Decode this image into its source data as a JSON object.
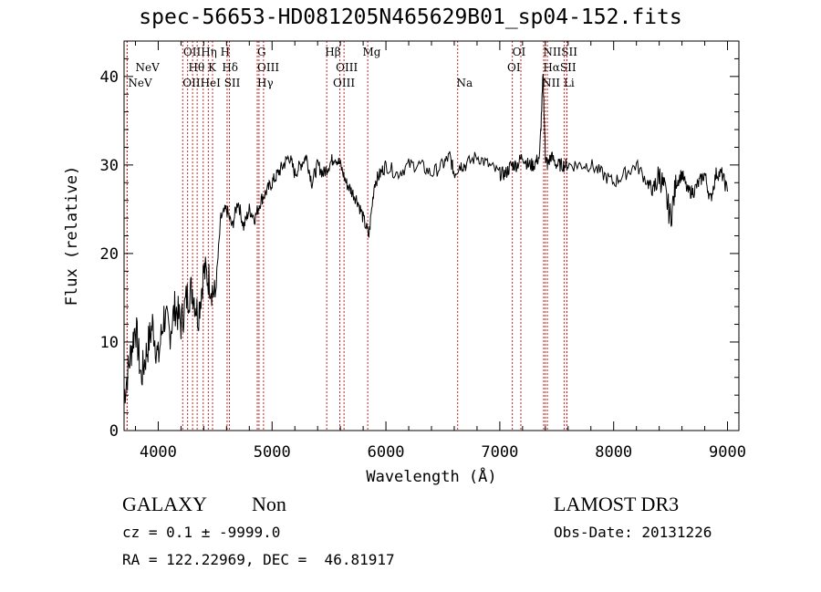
{
  "title": "spec-56653-HD081205N465629B01_sp04-152.fits",
  "info": {
    "class": "GALAXY",
    "subclass": "Non",
    "survey": "LAMOST DR3",
    "cz": "cz = 0.1 ± -9999.0",
    "obs_date": "Obs-Date: 20131226",
    "radec": "RA = 122.22969, DEC =  46.81917"
  },
  "chart_data": {
    "type": "line",
    "title": "spec-56653-HD081205N465629B01_sp04-152.fits",
    "xlabel": "Wavelength (Å)",
    "ylabel": "Flux (relative)",
    "xlim": [
      3700,
      9100
    ],
    "ylim": [
      0,
      44
    ],
    "xticks": [
      4000,
      5000,
      6000,
      7000,
      8000,
      9000
    ],
    "yticks": [
      0,
      10,
      20,
      30,
      40
    ],
    "grid": false,
    "color": "#000000",
    "line_marker_color": "#cc2222",
    "series": [
      {
        "x": [
          3700,
          3750,
          3800,
          3850,
          3900,
          3950,
          4000,
          4050,
          4100,
          4150,
          4200,
          4250,
          4300,
          4350,
          4400,
          4450,
          4500,
          4550,
          4600,
          4650,
          4700,
          4750,
          4800,
          4850,
          4900,
          4950,
          5000,
          5050,
          5100,
          5150,
          5200,
          5250,
          5300,
          5350,
          5400,
          5450,
          5500,
          5550,
          5600,
          5650,
          5700,
          5750,
          5800,
          5850,
          5900,
          5950,
          6000,
          6100,
          6200,
          6300,
          6400,
          6500,
          6560,
          6600,
          6650,
          6700,
          6800,
          6900,
          7000,
          7050,
          7100,
          7150,
          7200,
          7250,
          7300,
          7350,
          7380,
          7400,
          7420,
          7450,
          7500,
          7550,
          7600,
          7700,
          7800,
          7900,
          8000,
          8100,
          8200,
          8300,
          8350,
          8400,
          8450,
          8500,
          8550,
          8600,
          8650,
          8700,
          8750,
          8800,
          8850,
          8900,
          8950,
          9000
        ],
        "values": [
          4,
          8,
          12,
          6,
          9,
          12,
          8,
          13,
          11,
          14,
          12,
          15,
          16,
          13,
          18,
          17,
          15,
          24,
          25,
          23,
          26,
          23,
          25,
          24,
          26,
          27,
          28,
          29,
          30,
          31,
          29,
          30,
          31,
          28,
          30,
          29,
          30,
          31,
          30,
          28,
          27,
          26,
          24,
          22,
          28,
          29,
          30,
          29,
          30,
          30,
          29,
          30,
          31,
          29,
          30,
          30,
          31,
          30,
          29,
          29,
          30,
          30,
          31,
          30,
          30,
          31,
          40,
          31,
          30,
          31,
          30,
          30,
          30,
          30,
          30,
          29,
          28,
          29,
          30,
          28,
          27,
          29,
          27,
          24,
          28,
          29,
          27,
          27,
          28,
          29,
          26,
          29,
          29,
          27
        ]
      }
    ],
    "lines": [
      {
        "x": 3727,
        "label": "NeV"
      },
      {
        "x": 3727,
        "label": "NeV"
      },
      {
        "x": 4215,
        "label": "OII"
      },
      {
        "x": 4258,
        "label": "OII"
      },
      {
        "x": 4302,
        "label": "Hθ"
      },
      {
        "x": 4342,
        "label": "Hη"
      },
      {
        "x": 4395,
        "label": "HeI"
      },
      {
        "x": 4440,
        "label": "H"
      },
      {
        "x": 4477,
        "label": "K"
      },
      {
        "x": 4605,
        "label": "Hδ"
      },
      {
        "x": 4625,
        "label": "SII"
      },
      {
        "x": 4870,
        "label": "G"
      },
      {
        "x": 4885,
        "label": "Hγ"
      },
      {
        "x": 4925,
        "label": "OIII"
      },
      {
        "x": 5480,
        "label": "Hβ"
      },
      {
        "x": 5595,
        "label": "OIII"
      },
      {
        "x": 5632,
        "label": "OIII"
      },
      {
        "x": 5840,
        "label": "Mg"
      },
      {
        "x": 6630,
        "label": "Na"
      },
      {
        "x": 7110,
        "label": "OI"
      },
      {
        "x": 7185,
        "label": "OI"
      },
      {
        "x": 7385,
        "label": "NII"
      },
      {
        "x": 7400,
        "label": "Hα"
      },
      {
        "x": 7418,
        "label": "NII"
      },
      {
        "x": 7565,
        "label": "SII"
      },
      {
        "x": 7588,
        "label": "SII"
      },
      {
        "x": 7590,
        "label": "Li"
      }
    ]
  },
  "line_label_rows": [
    {
      "text": "NeV",
      "x": 3800,
      "row": 1
    },
    {
      "text": "NeV",
      "x": 3735,
      "row": 2
    },
    {
      "text": "OIIHη H",
      "x": 4220,
      "row": 0
    },
    {
      "text": "Hθ K",
      "x": 4265,
      "row": 1
    },
    {
      "text": "OIIHeI SII",
      "x": 4215,
      "row": 2
    },
    {
      "text": "Hδ",
      "x": 4560,
      "row": 1
    },
    {
      "text": "G",
      "x": 4870,
      "row": 0
    },
    {
      "text": "OIII",
      "x": 4870,
      "row": 1
    },
    {
      "text": "Hγ",
      "x": 4870,
      "row": 2
    },
    {
      "text": "Hβ",
      "x": 5465,
      "row": 0
    },
    {
      "text": "OIII",
      "x": 5560,
      "row": 1
    },
    {
      "text": "OIII",
      "x": 5535,
      "row": 2
    },
    {
      "text": "Mg",
      "x": 5795,
      "row": 0
    },
    {
      "text": "Na",
      "x": 6620,
      "row": 2
    },
    {
      "text": "OI",
      "x": 7110,
      "row": 0
    },
    {
      "text": "OI",
      "x": 7065,
      "row": 1
    },
    {
      "text": "NIISII",
      "x": 7380,
      "row": 0
    },
    {
      "text": "HαSII",
      "x": 7380,
      "row": 1
    },
    {
      "text": "NII Li",
      "x": 7370,
      "row": 2
    }
  ]
}
